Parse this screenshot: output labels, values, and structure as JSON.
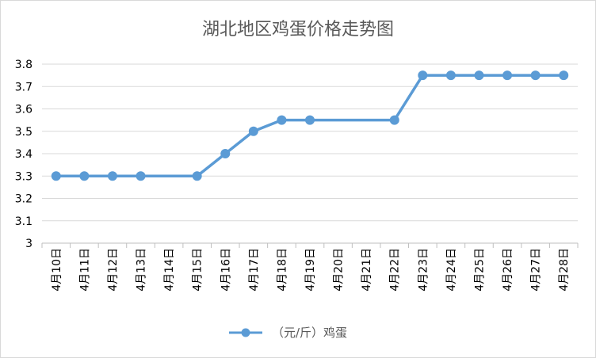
{
  "chart_data": {
    "type": "line",
    "title": "湖北地区鸡蛋价格走势图",
    "xlabel": "",
    "ylabel": "",
    "categories": [
      "4月10日",
      "4月11日",
      "4月12日",
      "4月13日",
      "4月14日",
      "4月15日",
      "4月16日",
      "4月17日",
      "4月18日",
      "4月19日",
      "4月20日",
      "4月21日",
      "4月22日",
      "4月23日",
      "4月24日",
      "4月25日",
      "4月26日",
      "4月27日",
      "4月28日"
    ],
    "series": [
      {
        "name": "（元/斤）鸡蛋",
        "values": [
          3.3,
          3.3,
          3.3,
          3.3,
          null,
          3.3,
          3.4,
          3.5,
          3.55,
          3.55,
          null,
          null,
          3.55,
          3.75,
          3.75,
          3.75,
          3.75,
          3.75,
          3.75
        ],
        "color": "#5b9bd5"
      }
    ],
    "ylim": [
      3,
      3.8
    ],
    "yticks": [
      "3",
      "3.1",
      "3.2",
      "3.3",
      "3.4",
      "3.5",
      "3.6",
      "3.7",
      "3.8"
    ],
    "grid": true,
    "legend": "bottom-center"
  },
  "colors": {
    "series_line": "#5b9bd5",
    "gridline": "#d9d9d9",
    "axis_line": "#bfbfbf",
    "title_text": "#595959"
  }
}
